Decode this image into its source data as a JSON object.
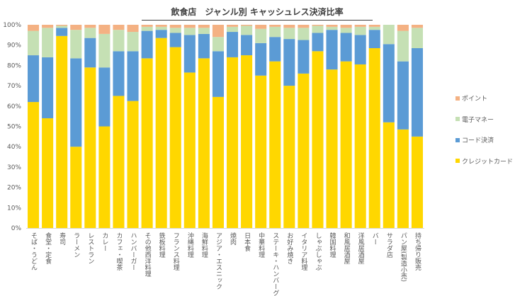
{
  "chart_data": {
    "type": "bar",
    "stacked": "percent",
    "title": "飲食店　ジャンル別 キャッシュレス決済比率",
    "xlabel": "",
    "ylabel": "",
    "ylim": [
      0,
      100
    ],
    "yticks": [
      "0%",
      "10%",
      "20%",
      "30%",
      "40%",
      "50%",
      "60%",
      "70%",
      "80%",
      "90%",
      "100%"
    ],
    "legend_position": "right",
    "categories": [
      "そば・うどん",
      "食堂・定食",
      "寿司",
      "ラーメン",
      "レストラン",
      "カレー",
      "カフェ・喫茶",
      "ハンバーガー",
      "その他西洋料理",
      "鉄板料理",
      "フランス料理",
      "沖縄料理",
      "海鮮料理",
      "アジア・エスニック",
      "焼肉",
      "日本食",
      "中華料理",
      "ステーキ・ハンバーグ",
      "お好み焼き",
      "イタリア料理",
      "しゃぶしゃぶ",
      "韓国料理",
      "和風居酒屋",
      "洋風居酒屋",
      "バー",
      "サラダ店",
      "パン屋(製造小売)",
      "持ち帰り販売"
    ],
    "series": [
      {
        "name": "クレジットカード",
        "color": "#FFD700",
        "values": [
          62,
          54,
          94.5,
          40,
          79,
          50,
          65,
          62.5,
          83.5,
          93.5,
          89,
          76.5,
          83.5,
          64.5,
          84,
          85,
          75,
          82,
          70,
          76,
          87,
          78,
          82,
          80.5,
          88.5,
          52,
          48.5,
          45
        ]
      },
      {
        "name": "コード決済",
        "color": "#5B9BD5",
        "values": [
          23,
          30,
          4,
          43.5,
          14.5,
          29,
          22,
          24.5,
          13.5,
          4,
          7,
          18.5,
          12,
          22.5,
          12.5,
          10,
          16,
          12,
          23,
          16.5,
          9,
          19.5,
          14,
          14.5,
          9,
          38.5,
          33.5,
          43.5
        ]
      },
      {
        "name": "電子マネー",
        "color": "#C5E0B4",
        "values": [
          12,
          14.5,
          1,
          14,
          5,
          16.5,
          10.5,
          9.5,
          2,
          1.5,
          2.5,
          3.5,
          3,
          7,
          2.5,
          4.5,
          7,
          5,
          5.5,
          6,
          3.5,
          1.5,
          2.5,
          4,
          1.5,
          9.5,
          15,
          10
        ]
      },
      {
        "name": "ポイント",
        "color": "#F4B183",
        "values": [
          3,
          1.5,
          0.5,
          2.5,
          1.5,
          4.5,
          2.5,
          3.5,
          1,
          1,
          1.5,
          1.5,
          1.5,
          6,
          1,
          0.5,
          2,
          1,
          1.5,
          1.5,
          0.5,
          1,
          1.5,
          1,
          1,
          0,
          3,
          1.5
        ]
      }
    ]
  }
}
